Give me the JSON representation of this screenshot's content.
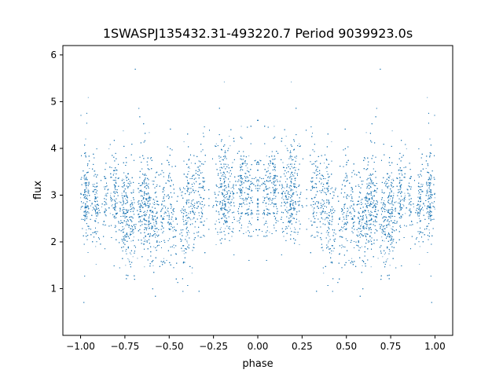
{
  "chart_data": {
    "type": "scatter",
    "title": "1SWASPJ135432.31-493220.7 Period 9039923.0s",
    "xlabel": "phase",
    "ylabel": "flux",
    "xlim": [
      -1.1,
      1.1
    ],
    "ylim": [
      0.0,
      6.2
    ],
    "x_ticks": [
      -1.0,
      -0.75,
      -0.5,
      -0.25,
      0.0,
      0.25,
      0.5,
      0.75,
      1.0
    ],
    "x_tick_labels": [
      "−1.00",
      "−0.75",
      "−0.50",
      "−0.25",
      "0.00",
      "0.25",
      "0.50",
      "0.75",
      "1.00"
    ],
    "y_ticks": [
      1,
      2,
      3,
      4,
      5,
      6
    ],
    "y_tick_labels": [
      "1",
      "2",
      "3",
      "4",
      "5",
      "6"
    ],
    "grid": false,
    "marker_color": "#1f77b4",
    "series": [
      {
        "phase_flux_profile": {
          "phase": [
            -1.0,
            -0.95,
            -0.9,
            -0.85,
            -0.8,
            -0.75,
            -0.7,
            -0.65,
            -0.6,
            -0.55,
            -0.5,
            -0.45,
            -0.4,
            -0.35,
            -0.3,
            -0.25,
            -0.2,
            -0.15,
            -0.1,
            -0.05,
            0.0
          ],
          "median_flux": [
            3.1,
            3.0,
            2.7,
            3.0,
            3.0,
            2.5,
            2.5,
            2.8,
            2.6,
            2.5,
            2.6,
            2.4,
            2.6,
            3.0,
            3.1,
            3.2,
            3.1,
            3.0,
            3.2,
            3.0,
            3.1
          ],
          "spread": [
            0.45,
            0.5,
            0.5,
            0.45,
            0.5,
            0.55,
            0.55,
            0.55,
            0.55,
            0.6,
            0.55,
            0.6,
            0.6,
            0.55,
            0.55,
            0.55,
            0.55,
            0.55,
            0.5,
            0.5,
            0.45
          ]
        },
        "symmetric_about_zero": true,
        "point_count": 16000
      }
    ]
  }
}
